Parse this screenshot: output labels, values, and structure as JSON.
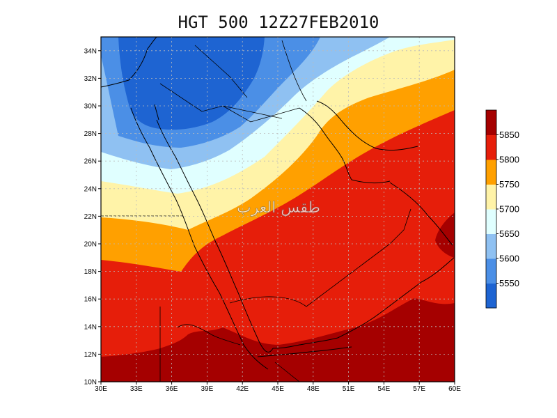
{
  "title": "HGT 500 12Z27FEB2010",
  "watermark": "طقس العرب",
  "map": {
    "lon_range": [
      30,
      60
    ],
    "lat_range": [
      10,
      35
    ],
    "lon_ticks": [
      "30E",
      "33E",
      "36E",
      "39E",
      "42E",
      "45E",
      "48E",
      "51E",
      "54E",
      "57E",
      "60E"
    ],
    "lat_ticks": [
      "10N",
      "12N",
      "14N",
      "16N",
      "18N",
      "20N",
      "22N",
      "24N",
      "26N",
      "28N",
      "30N",
      "32N",
      "34N"
    ],
    "gridlines": true
  },
  "colorbar": {
    "levels": [
      5500,
      5550,
      5600,
      5650,
      5700,
      5750,
      5800,
      5850,
      5900
    ],
    "labels": [
      "5550",
      "5600",
      "5650",
      "5700",
      "5750",
      "5800",
      "5850"
    ],
    "colors": [
      "#1E64D2",
      "#4B8FE6",
      "#8FC1F2",
      "#E0FFFF",
      "#FFF3A8",
      "#FFA000",
      "#E61E0A",
      "#A50000"
    ]
  }
}
